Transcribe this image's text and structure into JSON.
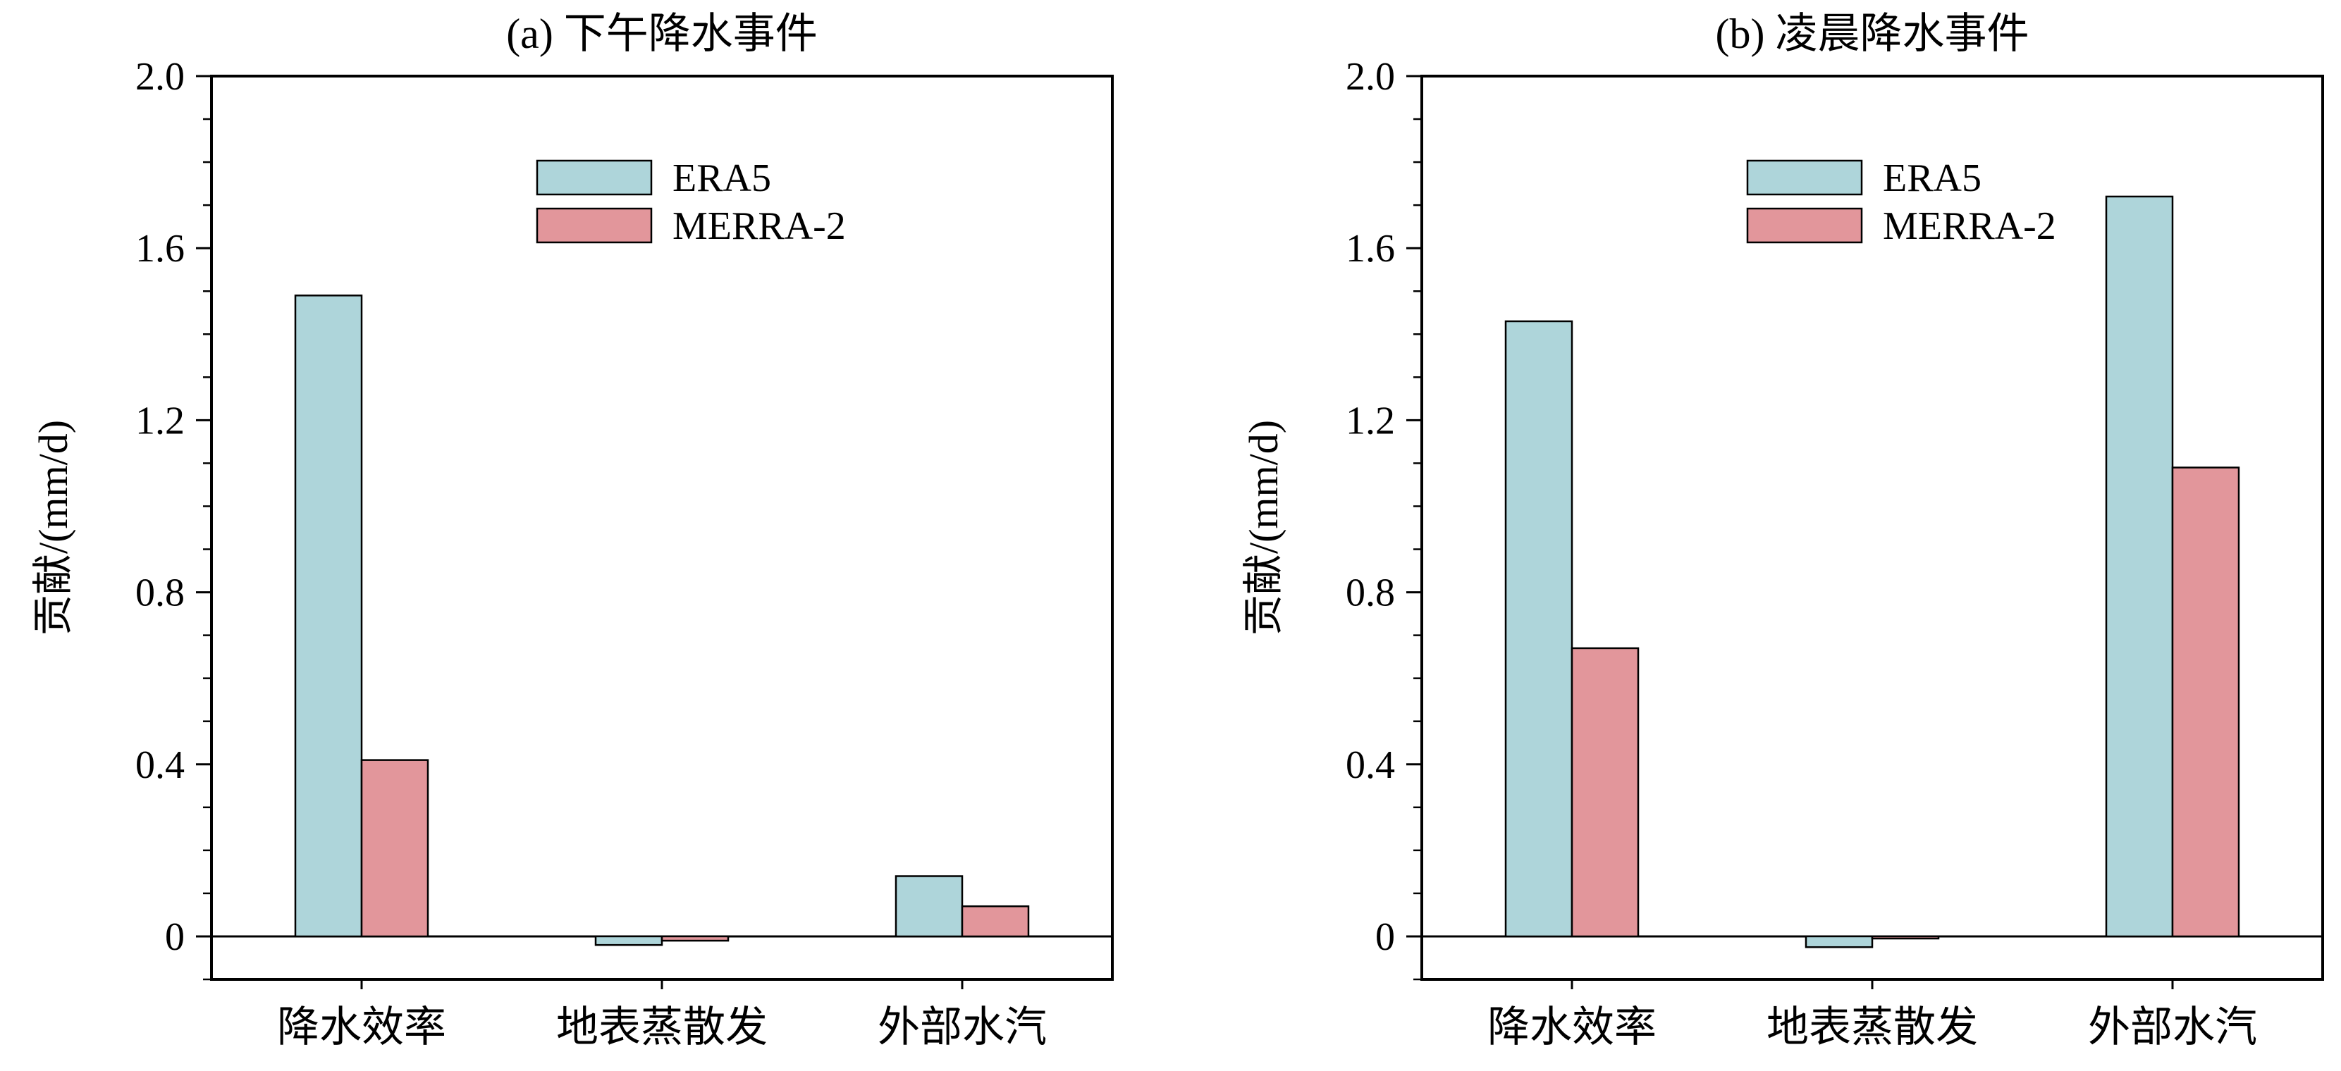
{
  "colors": {
    "era5": "#aed5da",
    "merra2": "#e2969b",
    "axis": "#000000",
    "background": "#ffffff"
  },
  "chart_data": [
    {
      "type": "bar",
      "title": "(a) 下午降水事件",
      "ylabel": "贡献/(mm/d)",
      "xlabel": "",
      "categories": [
        "降水效率",
        "地表蒸散发",
        "外部水汽"
      ],
      "ylim": [
        -0.1,
        2.0
      ],
      "yticks": [
        0,
        0.4,
        0.8,
        1.2,
        1.6,
        2.0
      ],
      "ytick_labels": [
        "0",
        "0.4",
        "0.8",
        "1.2",
        "1.6",
        "2.0"
      ],
      "legend_position": "top-center",
      "series": [
        {
          "name": "ERA5",
          "values": [
            1.49,
            -0.02,
            0.14
          ]
        },
        {
          "name": "MERRA-2",
          "values": [
            0.41,
            -0.01,
            0.07
          ]
        }
      ]
    },
    {
      "type": "bar",
      "title": "(b) 凌晨降水事件",
      "ylabel": "贡献/(mm/d)",
      "xlabel": "",
      "categories": [
        "降水效率",
        "地表蒸散发",
        "外部水汽"
      ],
      "ylim": [
        -0.1,
        2.0
      ],
      "yticks": [
        0,
        0.4,
        0.8,
        1.2,
        1.6,
        2.0
      ],
      "ytick_labels": [
        "0",
        "0.4",
        "0.8",
        "1.2",
        "1.6",
        "2.0"
      ],
      "legend_position": "top-center",
      "series": [
        {
          "name": "ERA5",
          "values": [
            1.43,
            -0.025,
            1.72
          ]
        },
        {
          "name": "MERRA-2",
          "values": [
            0.67,
            -0.005,
            1.09
          ]
        }
      ]
    }
  ]
}
